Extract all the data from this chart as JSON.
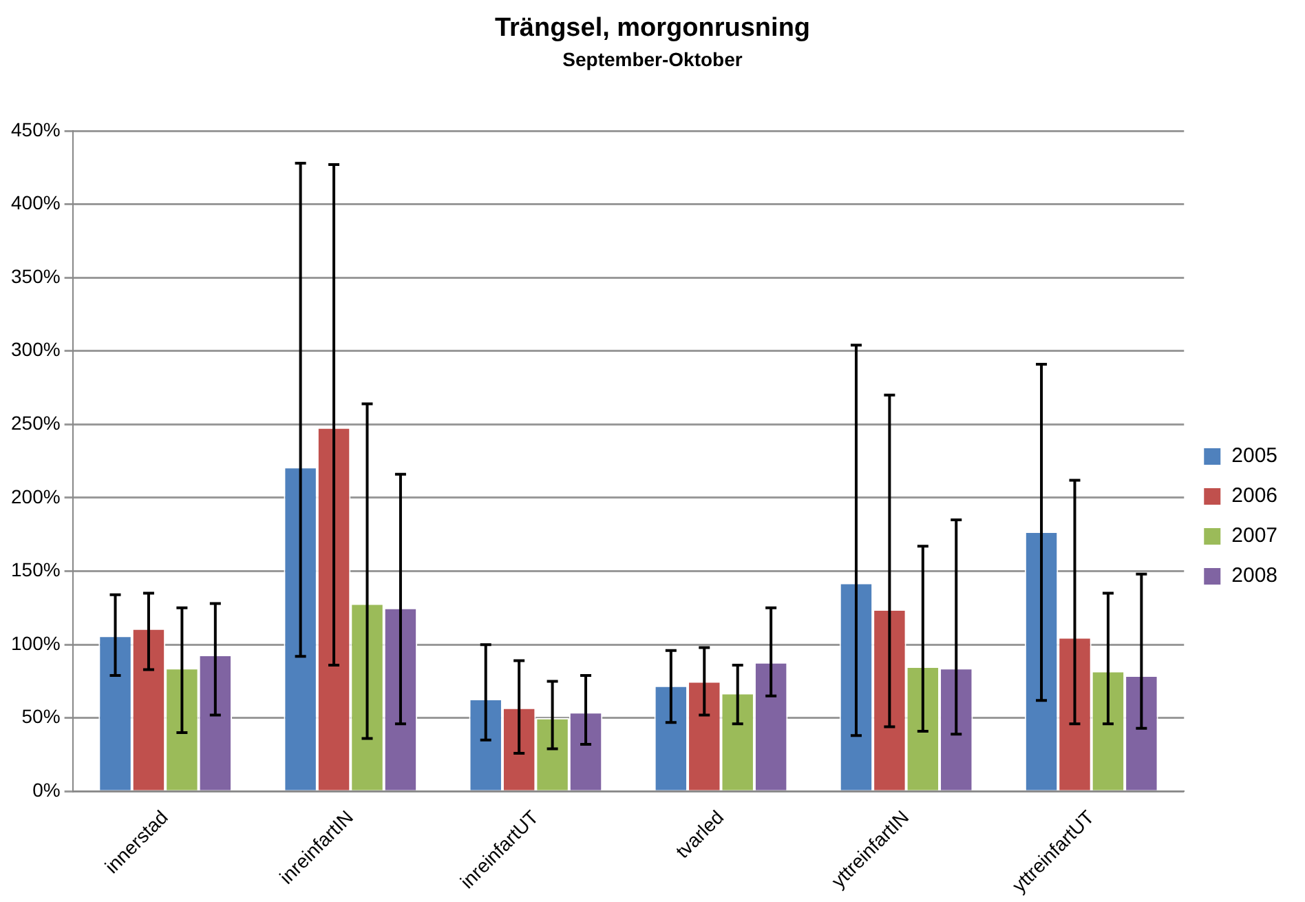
{
  "chart_data": {
    "type": "bar",
    "title": "Trängsel, morgonrusning",
    "subtitle": "September-Oktober",
    "categories": [
      "innerstad",
      "inreinfartIN",
      "inreinfartUT",
      "tvarled",
      "yttreinfartIN",
      "yttreinfartUT"
    ],
    "series": [
      {
        "name": "2005",
        "color": "#4f81bd",
        "values": [
          106,
          221,
          63,
          72,
          142,
          177
        ],
        "errors": [
          [
            79,
            134
          ],
          [
            92,
            428
          ],
          [
            35,
            100
          ],
          [
            47,
            96
          ],
          [
            38,
            304
          ],
          [
            62,
            291
          ]
        ]
      },
      {
        "name": "2006",
        "color": "#c0504d",
        "values": [
          111,
          248,
          57,
          75,
          124,
          105
        ],
        "errors": [
          [
            83,
            135
          ],
          [
            86,
            427
          ],
          [
            26,
            89
          ],
          [
            52,
            98
          ],
          [
            44,
            270
          ],
          [
            46,
            212
          ]
        ]
      },
      {
        "name": "2007",
        "color": "#9bbb59",
        "values": [
          84,
          128,
          50,
          67,
          85,
          82
        ],
        "errors": [
          [
            40,
            125
          ],
          [
            36,
            264
          ],
          [
            29,
            75
          ],
          [
            46,
            86
          ],
          [
            41,
            167
          ],
          [
            46,
            135
          ]
        ]
      },
      {
        "name": "2008",
        "color": "#8064a2",
        "values": [
          93,
          125,
          54,
          88,
          84,
          79
        ],
        "errors": [
          [
            52,
            128
          ],
          [
            46,
            216
          ],
          [
            32,
            79
          ],
          [
            65,
            125
          ],
          [
            39,
            185
          ],
          [
            43,
            148
          ]
        ]
      }
    ],
    "ylim": [
      0,
      450
    ],
    "yticks": [
      {
        "value": 0,
        "label": "0%"
      },
      {
        "value": 50,
        "label": "50%"
      },
      {
        "value": 100,
        "label": "100%"
      },
      {
        "value": 150,
        "label": "150%"
      },
      {
        "value": 200,
        "label": "200%"
      },
      {
        "value": 250,
        "label": "250%"
      },
      {
        "value": 300,
        "label": "300%"
      },
      {
        "value": 350,
        "label": "350%"
      },
      {
        "value": 400,
        "label": "400%"
      },
      {
        "value": 450,
        "label": "450%"
      }
    ],
    "grid": "y",
    "legend": "right"
  }
}
